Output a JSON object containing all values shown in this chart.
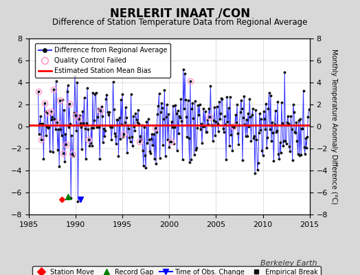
{
  "title": "NERLERIT INAAT /CON",
  "subtitle": "Difference of Station Temperature Data from Regional Average",
  "ylabel_right": "Monthly Temperature Anomaly Difference (°C)",
  "xlim": [
    1985,
    2015
  ],
  "ylim": [
    -8,
    8
  ],
  "yticks": [
    -8,
    -6,
    -4,
    -2,
    0,
    2,
    4,
    6,
    8
  ],
  "xticks": [
    1985,
    1990,
    1995,
    2000,
    2005,
    2010,
    2015
  ],
  "mean_bias": 0.15,
  "background_color": "#d8d8d8",
  "plot_bg_color": "#ffffff",
  "line_color": "#3333ff",
  "bias_color": "#ff0000",
  "qc_color": "#ff99cc",
  "dot_color": "#111111",
  "title_fontsize": 12,
  "subtitle_fontsize": 8.5,
  "axis_fontsize": 8,
  "watermark": "Berkeley Earth",
  "watermark_fontsize": 8,
  "record_gap_x": 1989.2,
  "record_gap_y": -6.4,
  "station_move_x": 1988.5,
  "station_move_y": -6.6,
  "time_obs_x": 1990.5,
  "time_obs_y": -6.6
}
